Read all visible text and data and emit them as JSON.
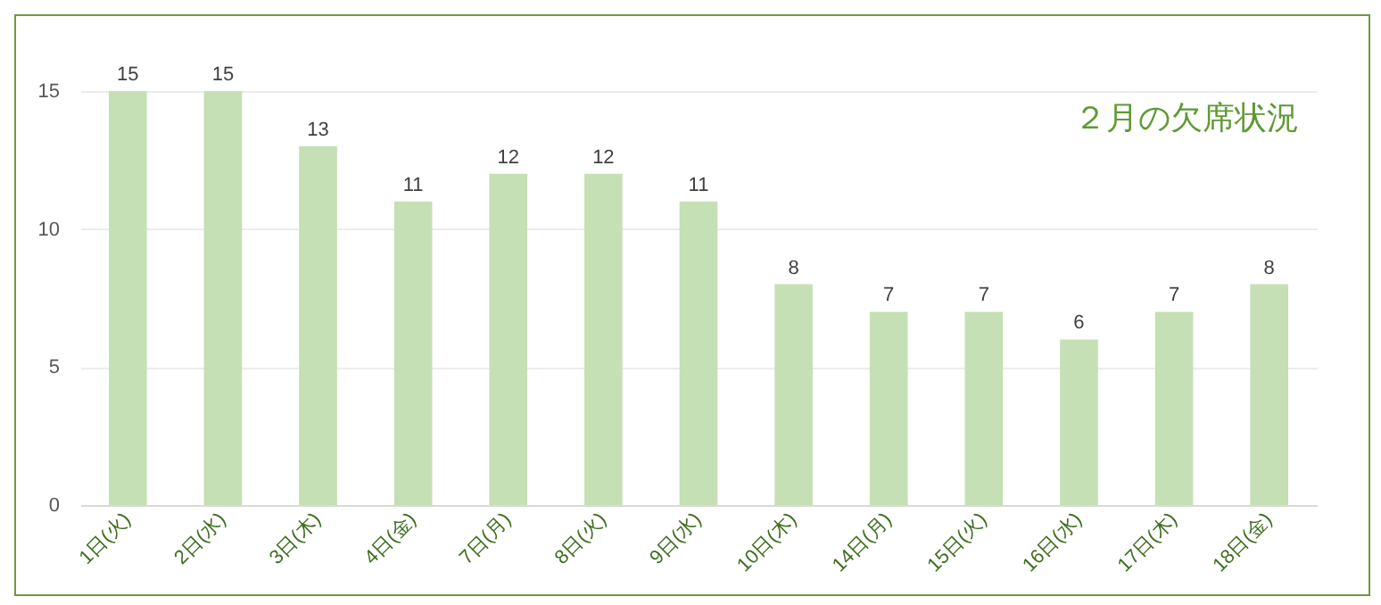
{
  "chart_data": {
    "type": "bar",
    "title": "２月の欠席状況",
    "categories": [
      "1日(火)",
      "2日(水)",
      "3日(木)",
      "4日(金)",
      "7日(月)",
      "8日(火)",
      "9日(水)",
      "10日(木)",
      "14日(月)",
      "15日(火)",
      "16日(水)",
      "17日(木)",
      "18日(金)"
    ],
    "values": [
      15,
      15,
      13,
      11,
      12,
      12,
      11,
      8,
      7,
      7,
      6,
      7,
      8
    ],
    "color": "#c5e0b4",
    "ylim": [
      0,
      15
    ],
    "yticks": [
      0,
      5,
      10,
      15
    ],
    "grid": "y",
    "data_labels": true
  }
}
